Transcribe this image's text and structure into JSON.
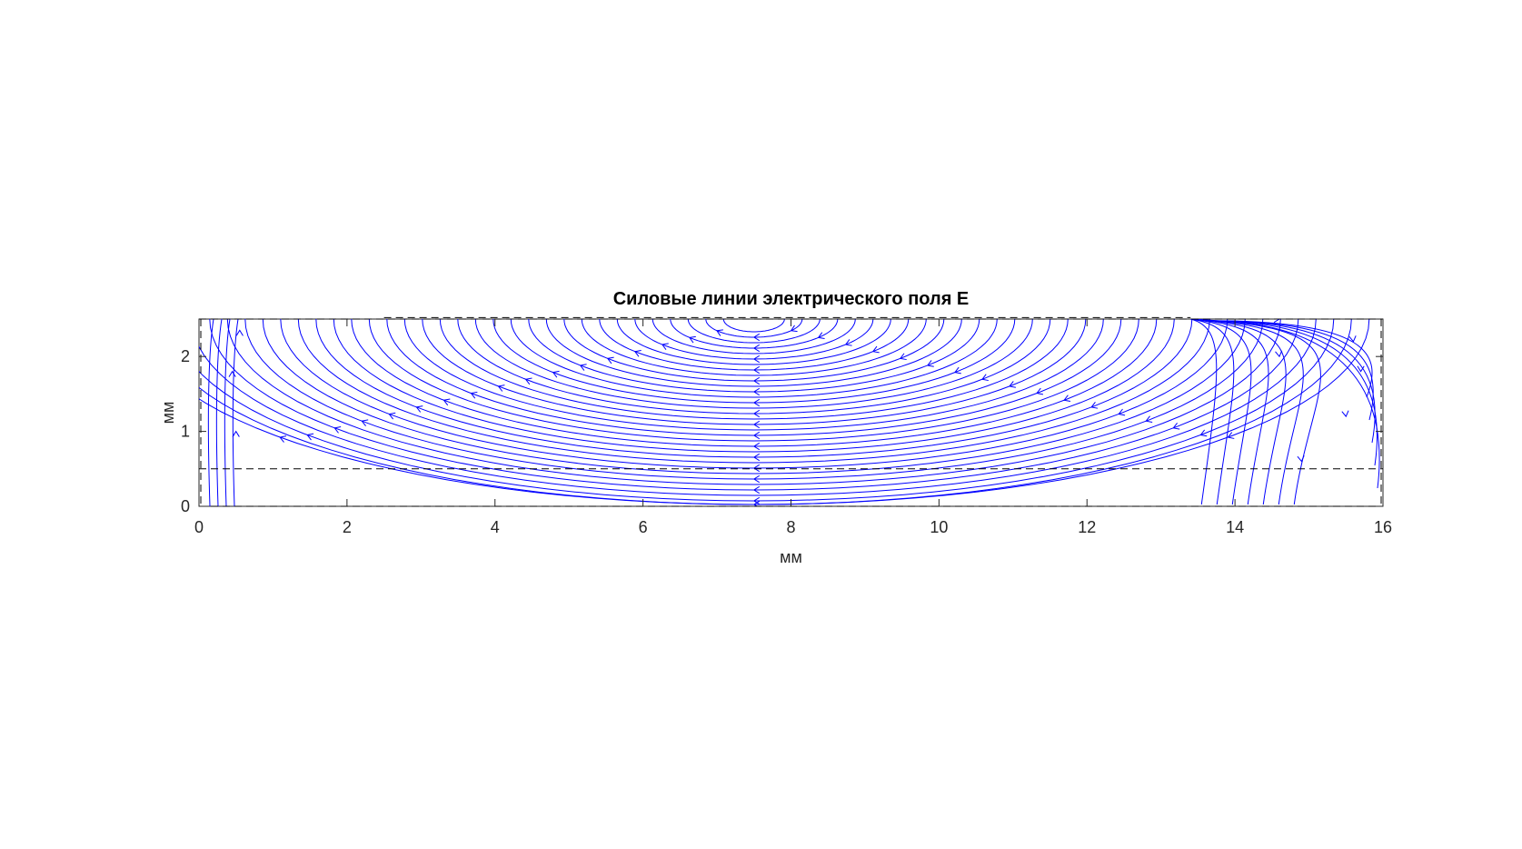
{
  "chart_data": {
    "type": "streamline",
    "title": "Силовые линии электрического поля E",
    "xlabel": "мм",
    "ylabel": "мм",
    "xlim": [
      0,
      16
    ],
    "ylim": [
      0,
      2.5
    ],
    "x_ticks": [
      "0",
      "2",
      "4",
      "6",
      "8",
      "10",
      "12",
      "14",
      "16"
    ],
    "y_ticks": [
      "0",
      "1",
      "2"
    ],
    "grid": false,
    "line_color": "#0000ff",
    "boundary_color": "#000000",
    "dashed_boundaries": [
      {
        "y": 0.0
      },
      {
        "y": 0.5
      },
      {
        "y": 2.5
      },
      {
        "y": 2.52,
        "x_range": [
          2.5,
          13.4
        ]
      }
    ],
    "field_center": {
      "x": 7.5,
      "y": 2.5
    },
    "field_description_values": {
      "arc_family_centered_near": [
        7.5,
        2.5
      ],
      "right_return_lines_from": [
        13.4,
        2.5
      ]
    }
  }
}
